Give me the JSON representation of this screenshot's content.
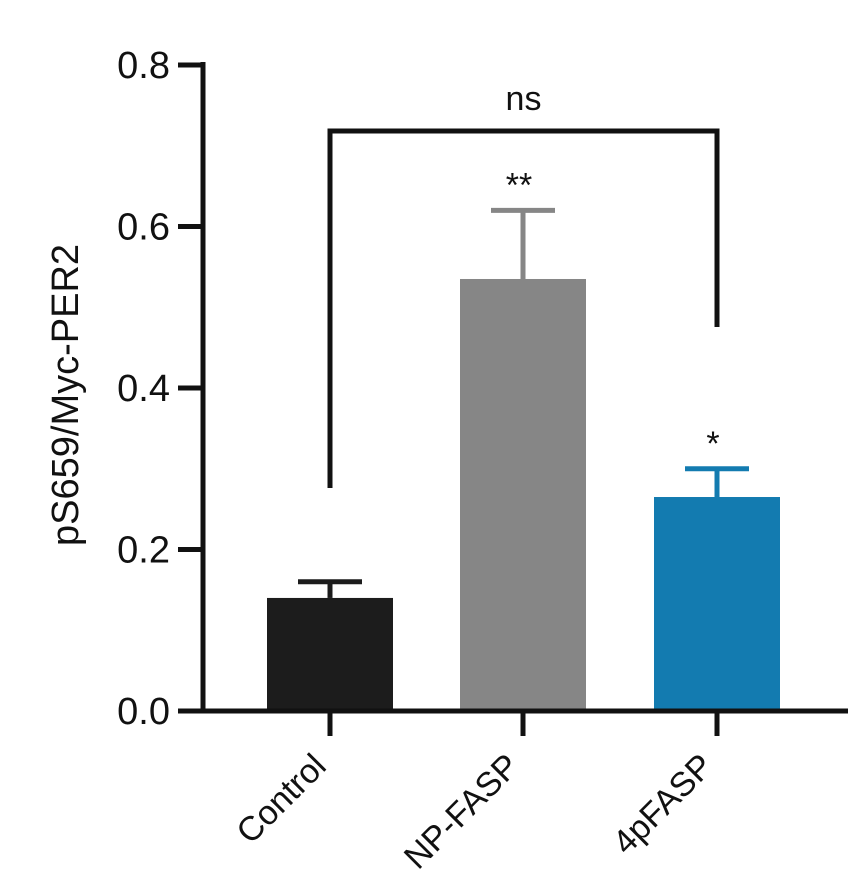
{
  "chart_data": {
    "type": "bar",
    "ylabel": "pS659/Myc-PER2",
    "xlabel": "",
    "ylim": [
      0,
      0.8
    ],
    "yticks": [
      "0.0",
      "0.2",
      "0.4",
      "0.6",
      "0.8"
    ],
    "categories": [
      "Control",
      "NP-FASP",
      "4pFASP"
    ],
    "values": [
      0.14,
      0.535,
      0.265
    ],
    "errors": [
      0.02,
      0.085,
      0.035
    ],
    "colors": [
      "#1c1c1c",
      "#868686",
      "#137bb0"
    ],
    "significance": [
      "",
      "**",
      "*"
    ],
    "comparison": {
      "from": "Control",
      "to": "4pFASP",
      "label": "ns"
    }
  }
}
